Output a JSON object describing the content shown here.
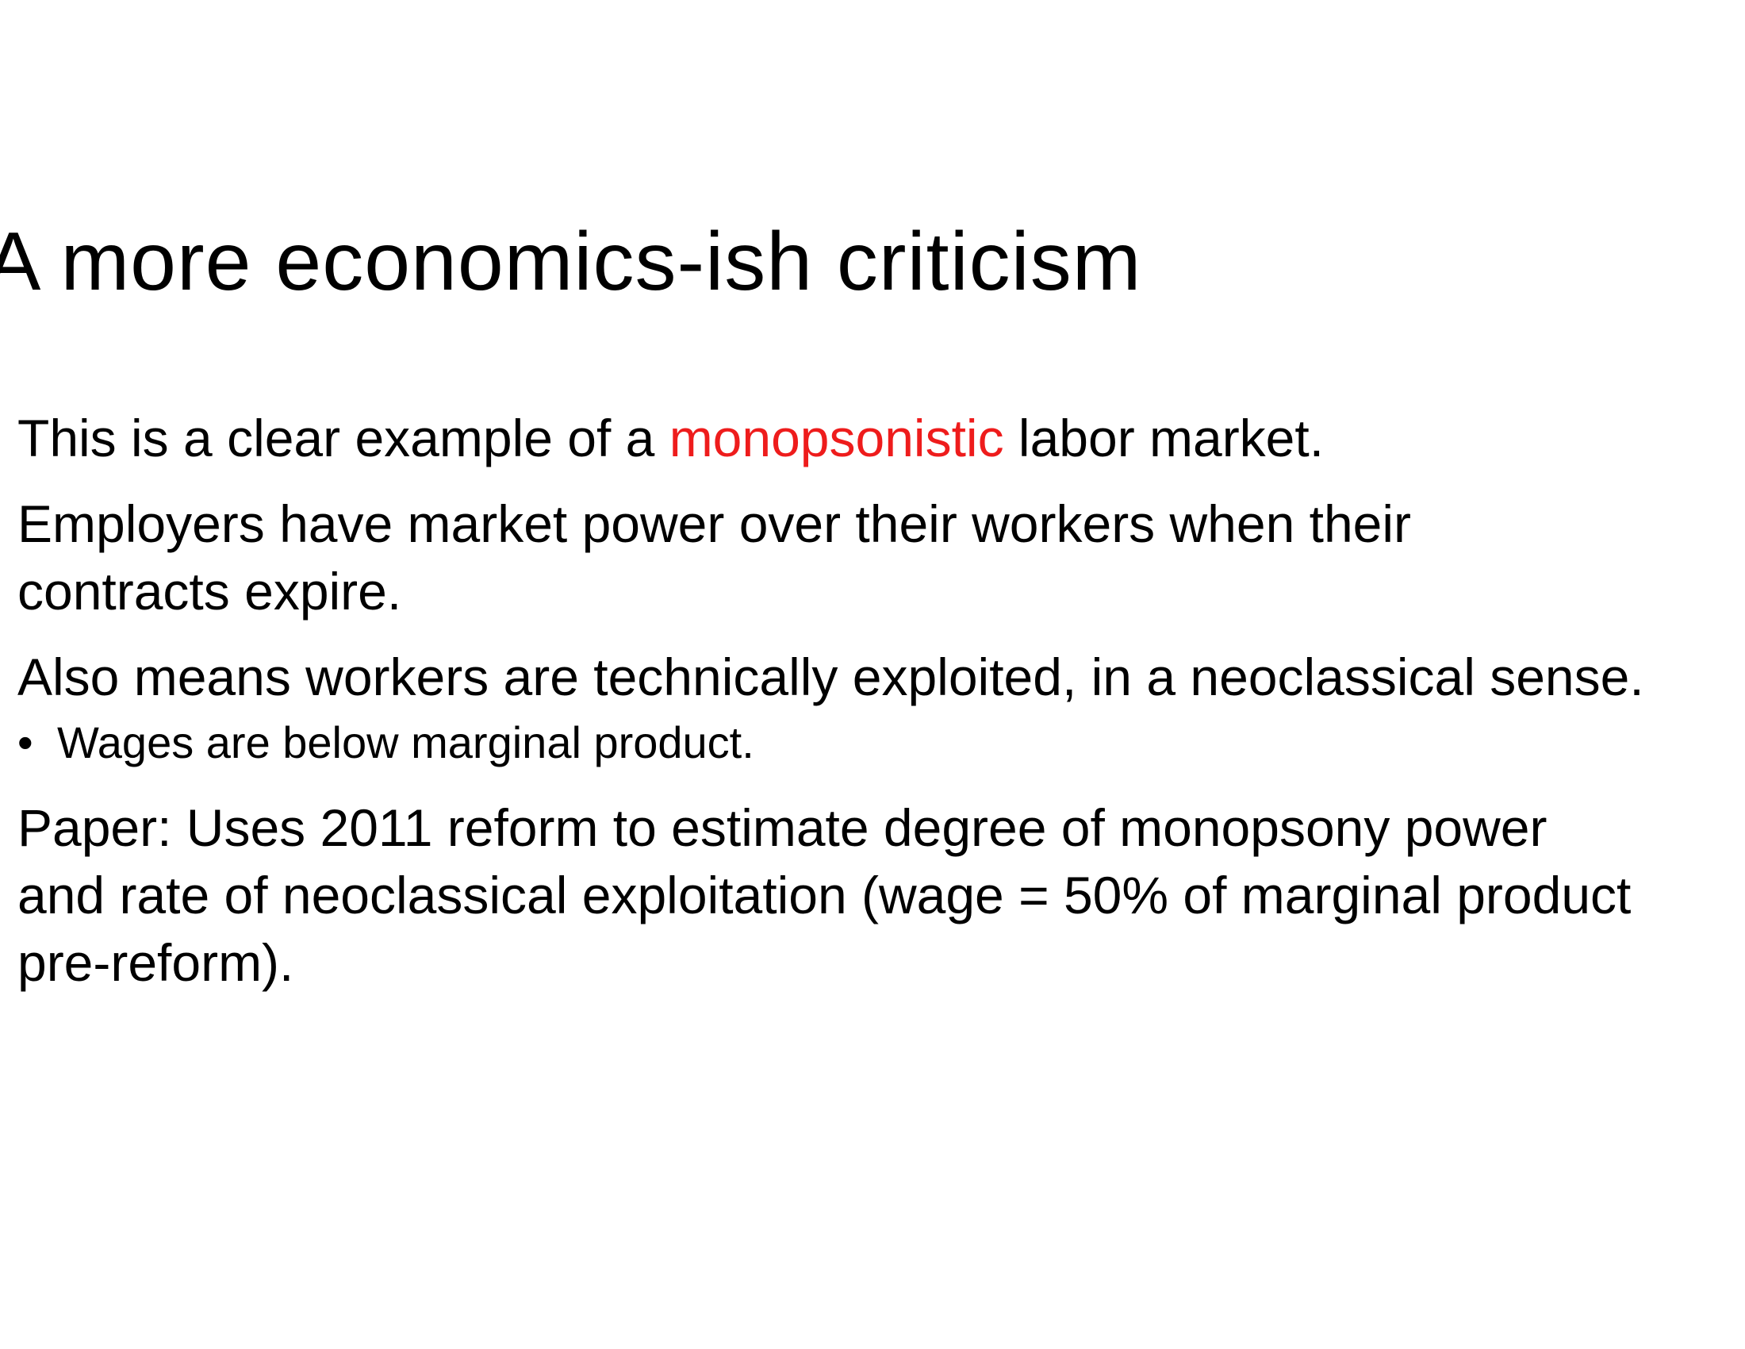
{
  "slide": {
    "title": "A more economics-ish criticism",
    "paragraphs": [
      {
        "before": "This is a clear example of a ",
        "highlight": "monopsonistic",
        "after": " labor market."
      },
      {
        "line1": "Employers have market power over their workers when their",
        "line2": "contracts expire."
      },
      {
        "text": "Also means workers are technically exploited, in a neoclassical sense.",
        "sub_bullet": "•",
        "sub_item": "Wages are below marginal product."
      },
      {
        "line1": "Paper: Uses 2011 reform to estimate degree of monopsony power",
        "line2": "and rate of neoclassical exploitation (wage = 50% of marginal product",
        "line3": "pre-reform)."
      }
    ],
    "highlight_color": "#ee1c1c"
  }
}
